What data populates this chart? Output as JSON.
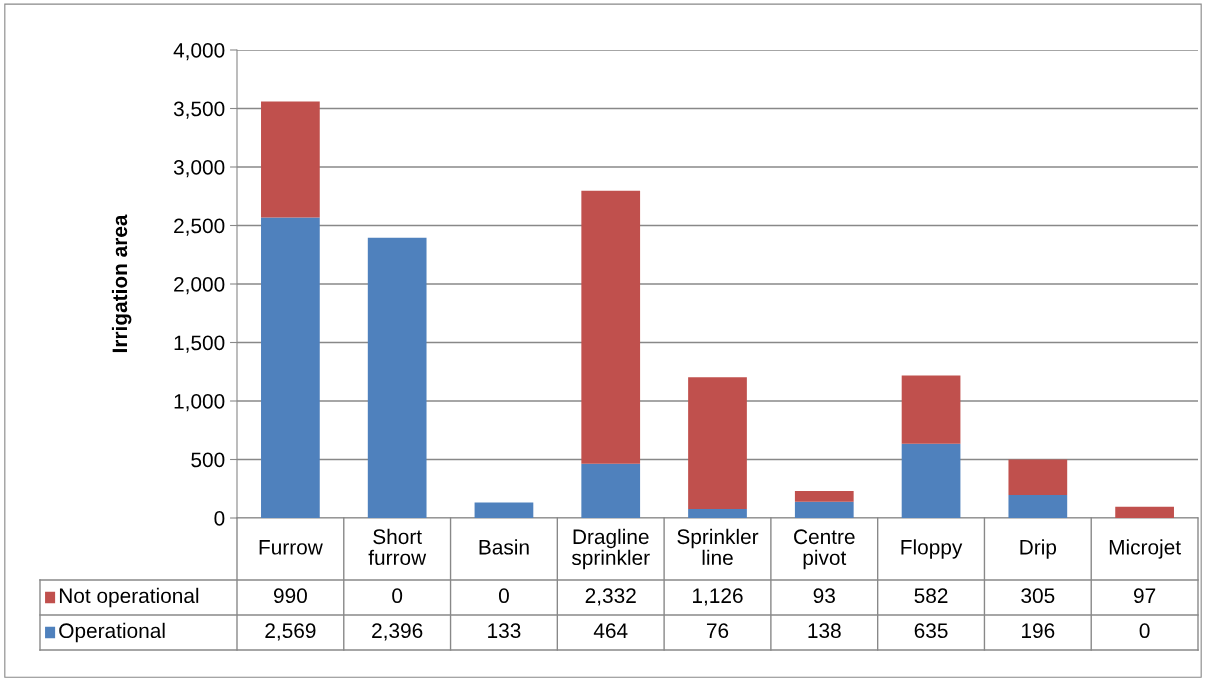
{
  "chart_data": {
    "type": "bar",
    "stacked": true,
    "ylabel": "Irrigation area",
    "categories": [
      "Furrow",
      "Short\nfurrow",
      "Basin",
      "Dragline\nsprinkler",
      "Sprinkler\nline",
      "Centre\npivot",
      "Floppy",
      "Drip",
      "Microjet"
    ],
    "series": [
      {
        "name": "Operational",
        "color": "#4f81bd",
        "values": [
          2569,
          2396,
          133,
          464,
          76,
          138,
          635,
          196,
          0
        ],
        "value_labels": [
          "2,569",
          "2,396",
          "133",
          "464",
          "76",
          "138",
          "635",
          "196",
          "0"
        ]
      },
      {
        "name": "Not operational",
        "color": "#c0504d",
        "values": [
          990,
          0,
          0,
          2332,
          1126,
          93,
          582,
          305,
          97
        ],
        "value_labels": [
          "990",
          "0",
          "0",
          "2,332",
          "1,126",
          "93",
          "582",
          "305",
          "97"
        ]
      }
    ],
    "ylim": [
      0,
      4000
    ],
    "yticks": [
      0,
      {
        "value": 500,
        "label": "500"
      },
      {
        "value": 1000,
        "label": "1,000"
      },
      {
        "value": 1500,
        "label": "1,500"
      },
      {
        "value": 2000,
        "label": "2,000"
      },
      {
        "value": 2500,
        "label": "2,500"
      },
      {
        "value": 3000,
        "label": "3,000"
      },
      {
        "value": 3500,
        "label": "3,500"
      },
      {
        "value": 4000,
        "label": "4,000"
      }
    ],
    "grid": "y",
    "legend": "bottom left"
  }
}
